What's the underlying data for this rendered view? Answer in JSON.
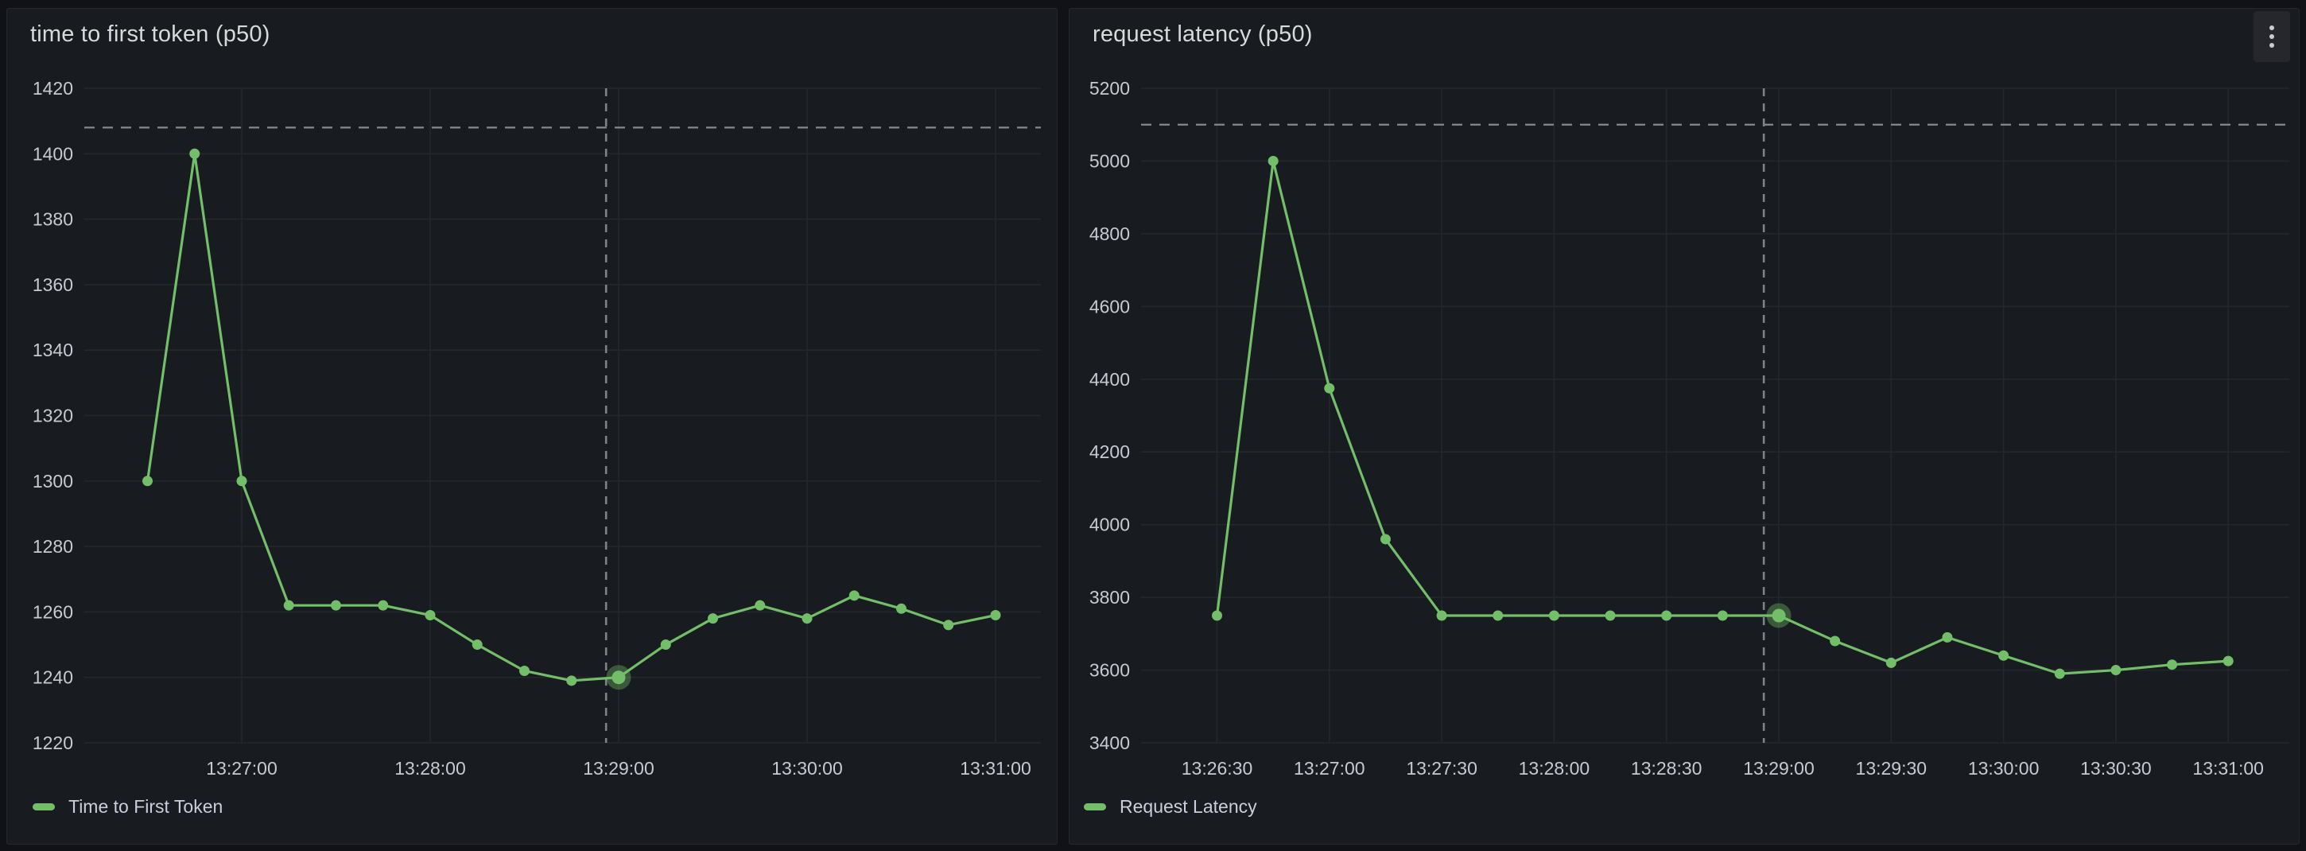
{
  "app": {
    "background": "#111217",
    "panel_background": "#181B1F",
    "accent_green": "#73BF69",
    "grid_color": "#24272D",
    "axis_text_color": "#C8C9D3",
    "threshold_line_color": "#85888F",
    "cursor_line_color": "#7E828A"
  },
  "panel_menu": {
    "icon": "kebab-menu-icon"
  },
  "chart_data": [
    {
      "type": "line",
      "panel_title": "time to first token (p50)",
      "legend_position": "bottom-left",
      "grid": true,
      "ylim": [
        1220,
        1420
      ],
      "y_ticks": [
        1220,
        1240,
        1260,
        1280,
        1300,
        1320,
        1340,
        1360,
        1380,
        1400,
        1420
      ],
      "x_tick_labels": [
        "13:27:00",
        "13:28:00",
        "13:29:00",
        "13:30:00",
        "13:31:00"
      ],
      "threshold_line": 1408,
      "cursor_time": "13:28:56",
      "highlighted_point": {
        "time": "13:29:00",
        "value": 1240
      },
      "series": [
        {
          "name": "Time to First Token",
          "color": "#73BF69",
          "x": [
            "13:26:30",
            "13:26:45",
            "13:27:00",
            "13:27:15",
            "13:27:30",
            "13:27:45",
            "13:28:00",
            "13:28:15",
            "13:28:30",
            "13:28:45",
            "13:29:00",
            "13:29:15",
            "13:29:30",
            "13:29:45",
            "13:30:00",
            "13:30:15",
            "13:30:30",
            "13:30:45",
            "13:31:00"
          ],
          "values": [
            1300,
            1400,
            1300,
            1262,
            1262,
            1262,
            1259,
            1250,
            1242,
            1239,
            1240,
            1250,
            1258,
            1262,
            1258,
            1265,
            1261,
            1256,
            1259
          ]
        }
      ]
    },
    {
      "type": "line",
      "panel_title": "request latency (p50)",
      "legend_position": "bottom-left",
      "grid": true,
      "ylim": [
        3400,
        5200
      ],
      "y_ticks": [
        3400,
        3600,
        3800,
        4000,
        4200,
        4400,
        4600,
        4800,
        5000,
        5200
      ],
      "x_tick_labels": [
        "13:26:30",
        "13:27:00",
        "13:27:30",
        "13:28:00",
        "13:28:30",
        "13:29:00",
        "13:29:30",
        "13:30:00",
        "13:30:30",
        "13:31:00"
      ],
      "threshold_line": 5100,
      "cursor_time": "13:28:56",
      "highlighted_point": {
        "time": "13:29:00",
        "value": 3750
      },
      "series": [
        {
          "name": "Request Latency",
          "color": "#73BF69",
          "x": [
            "13:26:30",
            "13:26:45",
            "13:27:00",
            "13:27:15",
            "13:27:30",
            "13:27:45",
            "13:28:00",
            "13:28:15",
            "13:28:30",
            "13:28:45",
            "13:29:00",
            "13:29:15",
            "13:29:30",
            "13:29:45",
            "13:30:00",
            "13:30:15",
            "13:30:30",
            "13:30:45",
            "13:31:00"
          ],
          "values": [
            3750,
            5000,
            4375,
            3960,
            3750,
            3750,
            3750,
            3750,
            3750,
            3750,
            3750,
            3680,
            3620,
            3690,
            3640,
            3590,
            3600,
            3615,
            3625
          ]
        }
      ]
    }
  ]
}
